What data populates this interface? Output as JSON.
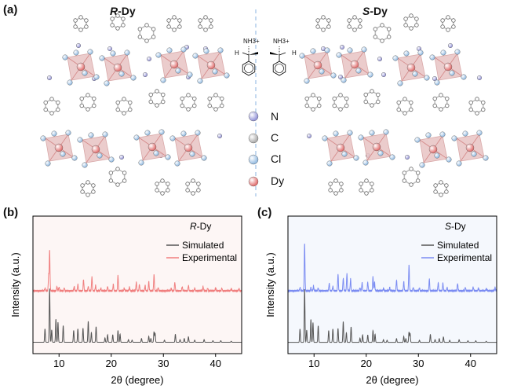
{
  "panel_a": {
    "label": "(a)",
    "left_title": {
      "prefix": "R",
      "suffix": "-Dy"
    },
    "right_title": {
      "prefix": "S",
      "suffix": "-Dy"
    },
    "cation_label": "NH3+",
    "cation_h": "H",
    "atom_legend": [
      {
        "label": "N",
        "color": "#8f8fd6"
      },
      {
        "label": "C",
        "color": "#a8a8a8"
      },
      {
        "label": "Cl",
        "color": "#8fb8e0"
      },
      {
        "label": "Dy",
        "color": "#e06a6a"
      }
    ],
    "octahedron_color": "#e8c3c3",
    "divider_color": "#9ec0e6"
  },
  "chart_data": [
    {
      "panel_label": "(b)",
      "type": "line",
      "annotation": {
        "prefix": "R",
        "suffix": "-Dy"
      },
      "xlabel": "2θ (degree)",
      "ylabel": "Intensity (a.u.)",
      "xlim": [
        5,
        45
      ],
      "ylim": [
        -21,
        233
      ],
      "xticks": [
        10,
        20,
        30,
        40
      ],
      "grid": false,
      "legend": "top-right",
      "background": "#fdf6f5",
      "series": [
        {
          "name": "Simulated",
          "color": "#555555",
          "offset": 0,
          "peaks": [
            [
              7.3,
              25
            ],
            [
              8.2,
              100
            ],
            [
              8.6,
              23
            ],
            [
              9.4,
              43
            ],
            [
              9.8,
              37
            ],
            [
              10.8,
              31
            ],
            [
              12.8,
              22
            ],
            [
              13.6,
              25
            ],
            [
              14.6,
              26
            ],
            [
              15.6,
              39
            ],
            [
              16.2,
              18
            ],
            [
              17.1,
              29
            ],
            [
              18.8,
              8
            ],
            [
              19.3,
              14
            ],
            [
              20.3,
              14
            ],
            [
              21.3,
              22
            ],
            [
              21.7,
              15
            ],
            [
              23.3,
              5
            ],
            [
              24.0,
              4
            ],
            [
              25.8,
              7
            ],
            [
              27.2,
              11
            ],
            [
              27.6,
              7
            ],
            [
              28.2,
              19
            ],
            [
              28.4,
              17
            ],
            [
              30.2,
              4
            ],
            [
              32.3,
              15
            ],
            [
              33.2,
              5
            ],
            [
              34.0,
              7
            ],
            [
              34.8,
              10
            ],
            [
              36.0,
              4
            ],
            [
              37.8,
              5
            ],
            [
              39.5,
              3
            ],
            [
              41.0,
              3
            ],
            [
              43.0,
              2
            ]
          ]
        },
        {
          "name": "Experimental",
          "color": "#f07f7f",
          "offset": 95,
          "peaks": [
            [
              7.3,
              5
            ],
            [
              8.0,
              30
            ],
            [
              8.2,
              75
            ],
            [
              9.6,
              8
            ],
            [
              10.0,
              7
            ],
            [
              11.0,
              5
            ],
            [
              12.9,
              8
            ],
            [
              13.6,
              12
            ],
            [
              14.7,
              21
            ],
            [
              15.6,
              8
            ],
            [
              16.3,
              26
            ],
            [
              17.0,
              10
            ],
            [
              18.0,
              5
            ],
            [
              19.3,
              8
            ],
            [
              20.4,
              12
            ],
            [
              21.3,
              28
            ],
            [
              22.5,
              5
            ],
            [
              23.5,
              7
            ],
            [
              24.8,
              16
            ],
            [
              25.4,
              12
            ],
            [
              26.5,
              10
            ],
            [
              27.2,
              17
            ],
            [
              28.2,
              30
            ],
            [
              29.0,
              6
            ],
            [
              31.5,
              5
            ],
            [
              32.2,
              16
            ],
            [
              33.6,
              8
            ],
            [
              34.8,
              10
            ],
            [
              36.0,
              5
            ],
            [
              37.6,
              8
            ],
            [
              38.5,
              5
            ],
            [
              40.0,
              6
            ],
            [
              41.2,
              5
            ],
            [
              43.0,
              4
            ],
            [
              44.5,
              4
            ]
          ]
        }
      ]
    },
    {
      "panel_label": "(c)",
      "type": "line",
      "annotation": {
        "prefix": "S",
        "suffix": "-Dy"
      },
      "xlabel": "2θ (degree)",
      "ylabel": "Intensity (a.u.)",
      "xlim": [
        5,
        45
      ],
      "ylim": [
        -21,
        235
      ],
      "xticks": [
        10,
        20,
        30,
        40
      ],
      "grid": false,
      "legend": "top-right",
      "background": "#f5f8fd",
      "series": [
        {
          "name": "Simulated",
          "color": "#555555",
          "offset": 0,
          "peaks": [
            [
              7.3,
              25
            ],
            [
              8.2,
              100
            ],
            [
              8.6,
              23
            ],
            [
              9.4,
              43
            ],
            [
              9.8,
              37
            ],
            [
              10.8,
              31
            ],
            [
              12.8,
              22
            ],
            [
              13.6,
              25
            ],
            [
              14.6,
              26
            ],
            [
              15.6,
              39
            ],
            [
              16.2,
              18
            ],
            [
              17.1,
              29
            ],
            [
              18.8,
              8
            ],
            [
              19.3,
              14
            ],
            [
              20.3,
              14
            ],
            [
              21.3,
              22
            ],
            [
              21.7,
              15
            ],
            [
              23.3,
              5
            ],
            [
              24.0,
              4
            ],
            [
              25.8,
              7
            ],
            [
              27.2,
              11
            ],
            [
              27.6,
              7
            ],
            [
              28.2,
              19
            ],
            [
              28.4,
              17
            ],
            [
              30.2,
              4
            ],
            [
              32.3,
              15
            ],
            [
              33.2,
              5
            ],
            [
              34.0,
              7
            ],
            [
              34.8,
              10
            ],
            [
              36.0,
              4
            ],
            [
              37.8,
              5
            ],
            [
              39.5,
              3
            ],
            [
              41.0,
              3
            ],
            [
              43.0,
              2
            ]
          ]
        },
        {
          "name": "Experimental",
          "color": "#7b8cf2",
          "offset": 96,
          "peaks": [
            [
              7.3,
              6
            ],
            [
              8.2,
              88
            ],
            [
              9.4,
              6
            ],
            [
              9.9,
              9
            ],
            [
              10.8,
              5
            ],
            [
              12.9,
              14
            ],
            [
              13.6,
              8
            ],
            [
              14.6,
              31
            ],
            [
              15.6,
              24
            ],
            [
              16.3,
              32
            ],
            [
              17.0,
              22
            ],
            [
              18.8,
              6
            ],
            [
              19.2,
              15
            ],
            [
              20.3,
              16
            ],
            [
              21.3,
              26
            ],
            [
              21.6,
              16
            ],
            [
              23.3,
              5
            ],
            [
              24.5,
              6
            ],
            [
              25.8,
              20
            ],
            [
              27.2,
              17
            ],
            [
              28.2,
              48
            ],
            [
              29.0,
              6
            ],
            [
              30.2,
              5
            ],
            [
              32.1,
              22
            ],
            [
              33.8,
              15
            ],
            [
              34.7,
              14
            ],
            [
              35.5,
              6
            ],
            [
              37.5,
              14
            ],
            [
              39.0,
              6
            ],
            [
              40.5,
              7
            ],
            [
              41.5,
              5
            ],
            [
              43.0,
              4
            ],
            [
              44.7,
              6
            ]
          ]
        }
      ]
    }
  ]
}
